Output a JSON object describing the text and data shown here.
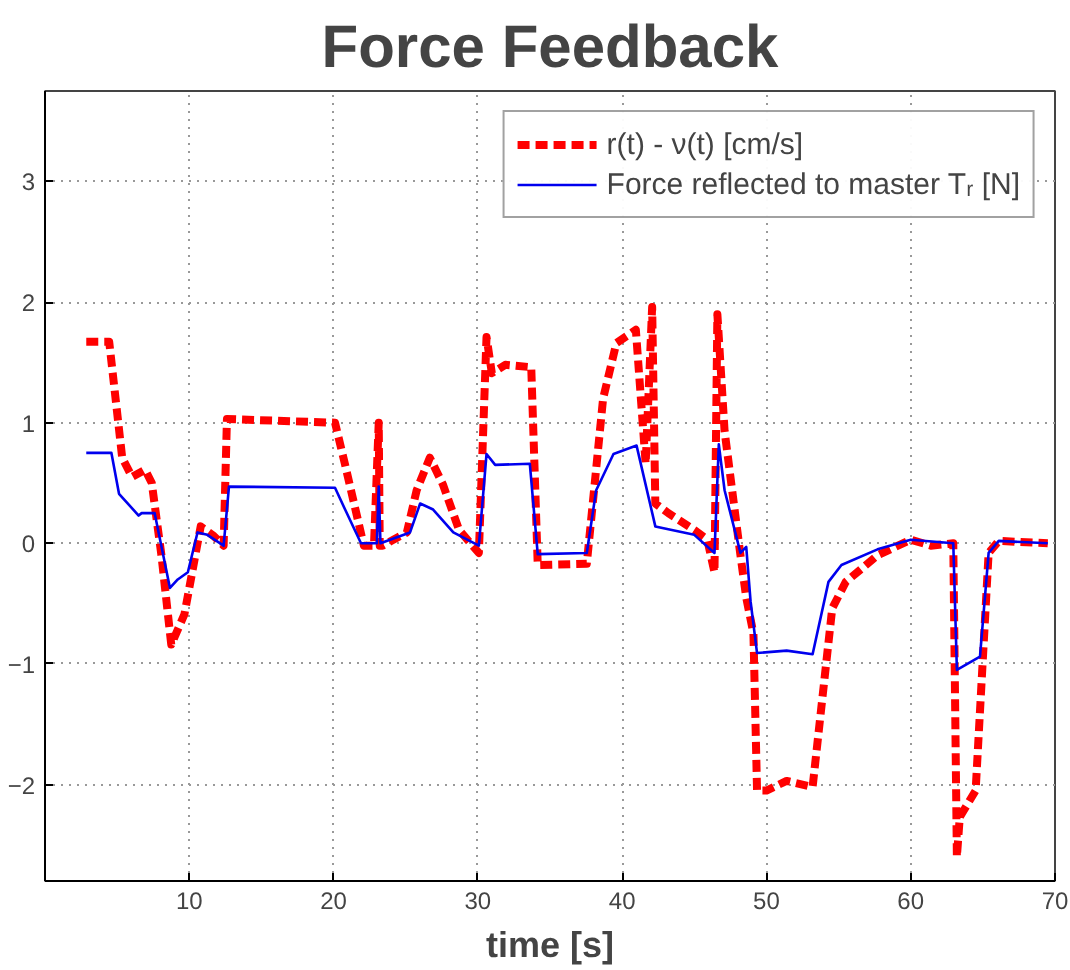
{
  "chart_data": {
    "type": "line",
    "title": "Force Feedback",
    "xlabel": "time [s]",
    "xlim": [
      0,
      70
    ],
    "ylim": [
      -2.8,
      3.75
    ],
    "xticks": [
      10,
      20,
      30,
      40,
      50,
      60,
      70
    ],
    "yticks": [
      -2,
      -1,
      0,
      1,
      2,
      3
    ],
    "grid": true,
    "legend": "top right",
    "series": [
      {
        "name": "r(t) - ν(t) [cm/s]",
        "color": "#ff0000",
        "line_style": "dashed",
        "x": [
          2.86,
          4.45,
          5.35,
          6.03,
          6.94,
          7.4,
          8.07,
          8.75,
          9.66,
          10.79,
          11.7,
          12.38,
          12.61,
          20.1,
          20.78,
          22.1,
          22.8,
          23.13,
          23.2,
          23.4,
          25.08,
          25.76,
          26.67,
          27.57,
          28.7,
          30.07,
          30.6,
          30.97,
          31.9,
          33.7,
          34.15,
          37.55,
          38.68,
          39.6,
          40.95,
          41.63,
          42.08,
          42.3,
          43.2,
          45.0,
          45.9,
          46.4,
          46.6,
          47.1,
          48.2,
          48.6,
          49.1,
          49.35,
          50.0,
          51.4,
          53.2,
          54.56,
          55.5,
          57.7,
          60.0,
          61.4,
          62.95,
          63.2,
          63.4,
          64.5,
          65.4,
          66.1,
          69.5
        ],
        "values": [
          1.67,
          1.67,
          0.71,
          0.55,
          0.61,
          0.5,
          -0.1,
          -0.84,
          -0.59,
          0.14,
          0.06,
          -0.02,
          1.03,
          1.0,
          0.66,
          -0.02,
          -0.02,
          1.0,
          -0.02,
          -0.02,
          0.09,
          0.44,
          0.71,
          0.49,
          0.11,
          -0.08,
          1.71,
          1.41,
          1.48,
          1.46,
          -0.18,
          -0.17,
          1.2,
          1.66,
          1.77,
          0.66,
          1.96,
          0.33,
          0.25,
          0.11,
          0.03,
          -0.24,
          1.9,
          0.93,
          -0.1,
          -0.45,
          -0.75,
          -2.05,
          -2.05,
          -1.97,
          -2.02,
          -0.54,
          -0.32,
          -0.1,
          0.03,
          -0.02,
          0.0,
          -2.6,
          -2.27,
          -2.05,
          -0.08,
          0.02,
          0.0
        ]
      },
      {
        "name": "Force reflected to master Tᵣ [N]",
        "color": "#0000ee",
        "line_style": "solid",
        "x": [
          2.86,
          4.6,
          5.13,
          6.49,
          6.7,
          7.6,
          8.66,
          9.2,
          9.9,
          10.57,
          11.25,
          12.38,
          12.75,
          20.1,
          20.8,
          21.9,
          23.0,
          23.13,
          23.25,
          25.3,
          26.0,
          26.9,
          28.3,
          30.07,
          30.6,
          31.2,
          33.6,
          34.15,
          37.55,
          38.2,
          39.4,
          41.0,
          42.3,
          45.0,
          46.4,
          46.7,
          47.1,
          48.2,
          48.6,
          48.9,
          49.35,
          51.4,
          53.2,
          54.3,
          55.2,
          57.7,
          60.0,
          62.95,
          63.2,
          64.8,
          65.4,
          66.1,
          69.5
        ],
        "values": [
          0.75,
          0.75,
          0.41,
          0.23,
          0.25,
          0.25,
          -0.37,
          -0.3,
          -0.24,
          0.09,
          0.07,
          -0.02,
          0.47,
          0.46,
          0.28,
          0.0,
          0.0,
          0.47,
          0.0,
          0.09,
          0.33,
          0.28,
          0.09,
          -0.02,
          0.74,
          0.65,
          0.66,
          -0.09,
          -0.08,
          0.44,
          0.74,
          0.81,
          0.14,
          0.07,
          -0.08,
          0.82,
          0.44,
          -0.08,
          -0.03,
          -0.48,
          -0.91,
          -0.89,
          -0.92,
          -0.32,
          -0.18,
          -0.05,
          0.03,
          0.0,
          -1.05,
          -0.94,
          -0.08,
          0.02,
          0.0
        ]
      }
    ]
  }
}
